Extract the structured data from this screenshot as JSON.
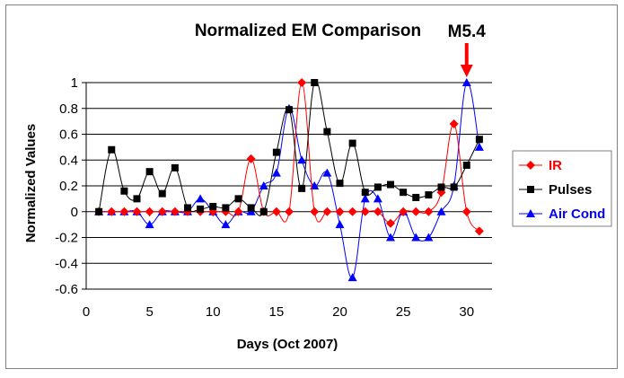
{
  "chart_data": {
    "type": "line",
    "title": "Normalized EM Comparison",
    "xlabel": "Days (Oct 2007)",
    "ylabel": "Normalized Values",
    "xlim": [
      0,
      32
    ],
    "ylim": [
      -0.6,
      1
    ],
    "xticks": [
      "0",
      "5",
      "10",
      "15",
      "20",
      "25",
      "30"
    ],
    "yticks": [
      "-0.6",
      "-0.4",
      "-0.2",
      "0",
      "0.2",
      "0.4",
      "0.6",
      "0.8",
      "1"
    ],
    "grid": "horizontal",
    "legend_position": "right",
    "annotation": {
      "text": "M5.4",
      "x": 30,
      "color": "#ff0000"
    },
    "series": [
      {
        "name": "IR",
        "color": "#ff0000",
        "marker": "diamond",
        "x": [
          1,
          2,
          3,
          4,
          5,
          6,
          7,
          8,
          9,
          10,
          11,
          12,
          13,
          14,
          15,
          16,
          17,
          18,
          19,
          20,
          21,
          22,
          23,
          24,
          25,
          26,
          27,
          28,
          29,
          30,
          31
        ],
        "y": [
          0,
          0,
          0,
          0,
          0,
          0,
          0,
          0,
          0,
          0,
          0,
          0,
          0.41,
          0,
          0,
          0,
          1.0,
          0,
          0,
          0,
          0,
          0,
          0,
          -0.09,
          0,
          0,
          0,
          0.15,
          0.68,
          0,
          -0.15
        ]
      },
      {
        "name": "Pulses",
        "color": "#000000",
        "marker": "square",
        "x": [
          1,
          2,
          3,
          4,
          5,
          6,
          7,
          8,
          9,
          10,
          11,
          12,
          13,
          14,
          15,
          16,
          17,
          18,
          19,
          20,
          21,
          22,
          23,
          24,
          25,
          26,
          27,
          28,
          29,
          30,
          31
        ],
        "y": [
          0,
          0.48,
          0.16,
          0.1,
          0.31,
          0.14,
          0.34,
          0.03,
          0.02,
          0.04,
          0.03,
          0.1,
          0.03,
          0,
          0.46,
          0.79,
          0.18,
          1.0,
          0.62,
          0.22,
          0.53,
          0.15,
          0.19,
          0.21,
          0.15,
          0.11,
          0.13,
          0.19,
          0.19,
          0.36,
          0.56
        ]
      },
      {
        "name": "Air Cond",
        "color": "#0000ff",
        "marker": "triangle",
        "x": [
          1,
          2,
          3,
          4,
          5,
          6,
          7,
          8,
          9,
          10,
          11,
          12,
          13,
          14,
          15,
          16,
          17,
          18,
          19,
          20,
          21,
          22,
          23,
          24,
          25,
          26,
          27,
          28,
          29,
          30,
          31
        ],
        "y": [
          0,
          0,
          0,
          0,
          -0.1,
          0,
          0,
          0,
          0.1,
          0,
          -0.1,
          0,
          0,
          0.2,
          0.3,
          0.8,
          0.4,
          0.2,
          0.3,
          -0.1,
          -0.51,
          0.1,
          0.1,
          -0.2,
          0,
          -0.2,
          -0.2,
          0,
          0.2,
          1.0,
          0.5
        ]
      }
    ]
  }
}
